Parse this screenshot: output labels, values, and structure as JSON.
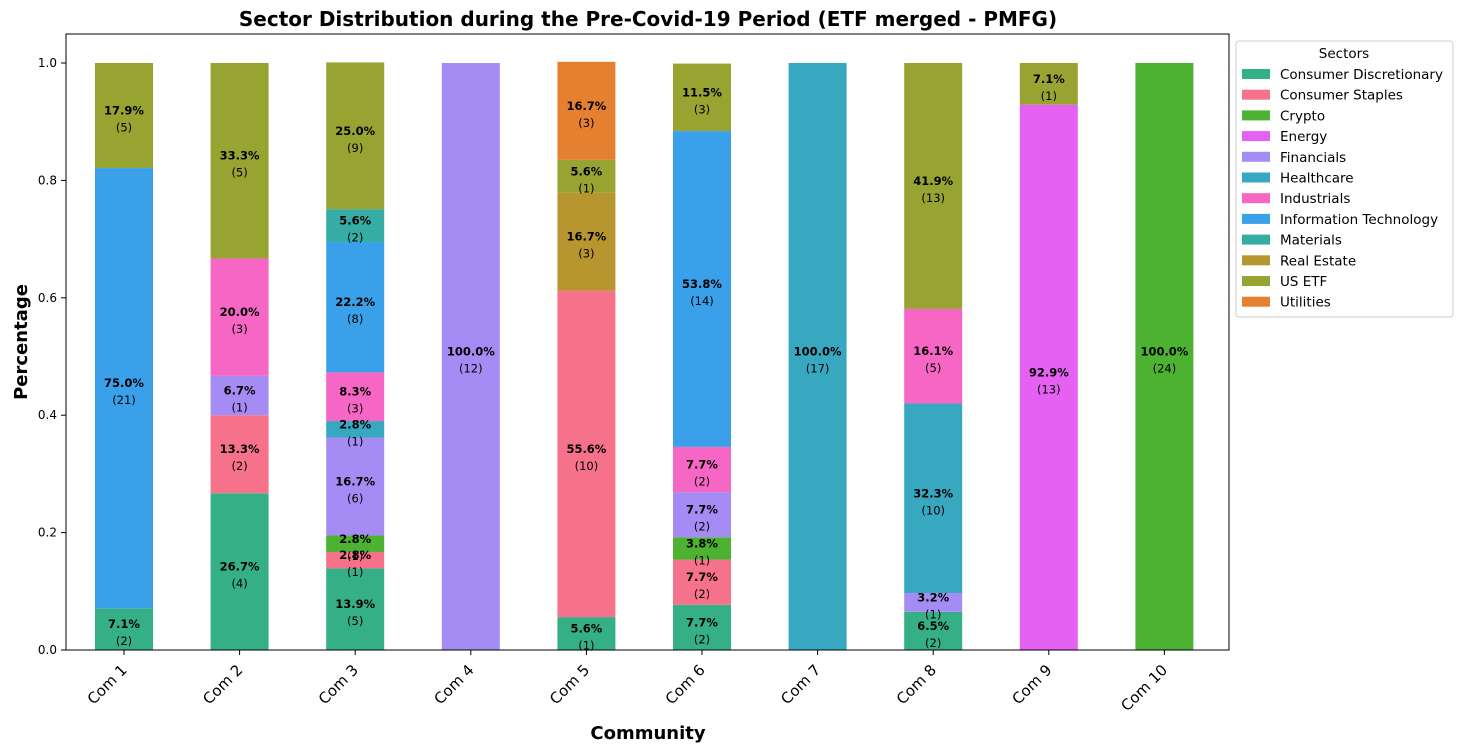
{
  "chart_data": {
    "type": "bar",
    "stacked": true,
    "title": "Sector Distribution during the Pre-Covid-19 Period (ETF merged - PMFG)",
    "xlabel": "Community",
    "ylabel": "Percentage",
    "ylim": [
      0,
      1.05
    ],
    "yticks": [
      "0.0",
      "0.2",
      "0.4",
      "0.6",
      "0.8",
      "1.0"
    ],
    "grid": false,
    "legend_title": "Sectors",
    "legend_position": "outside-top-right",
    "categories": [
      "Com 1",
      "Com 2",
      "Com 3",
      "Com 4",
      "Com 5",
      "Com 6",
      "Com 7",
      "Com 8",
      "Com 9",
      "Com 10"
    ],
    "series": [
      {
        "name": "Consumer Discretionary",
        "color": "#35af86",
        "values": [
          0.071,
          0.267,
          0.139,
          0,
          0.056,
          0.077,
          0,
          0.065,
          0,
          0
        ],
        "pct_labels": [
          "7.1%",
          "26.7%",
          "13.9%",
          "",
          "5.6%",
          "7.7%",
          "",
          "6.5%",
          "",
          ""
        ],
        "count_labels": [
          "(2)",
          "(4)",
          "(5)",
          "",
          "(1)",
          "(2)",
          "",
          "(2)",
          "",
          ""
        ]
      },
      {
        "name": "Consumer Staples",
        "color": "#f5728a",
        "values": [
          0,
          0.133,
          0.028,
          0,
          0.556,
          0.077,
          0,
          0,
          0,
          0
        ],
        "pct_labels": [
          "",
          "13.3%",
          "2.8%",
          "",
          "55.6%",
          "7.7%",
          "",
          "",
          "",
          ""
        ],
        "count_labels": [
          "",
          "(2)",
          "(1)",
          "",
          "(10)",
          "(2)",
          "",
          "",
          "",
          ""
        ]
      },
      {
        "name": "Crypto",
        "color": "#4db132",
        "values": [
          0,
          0,
          0.028,
          0,
          0,
          0.038,
          0,
          0,
          0,
          1.0
        ],
        "pct_labels": [
          "",
          "",
          "2.8%",
          "",
          "",
          "3.8%",
          "",
          "",
          "",
          "100.0%"
        ],
        "count_labels": [
          "",
          "",
          "(1)",
          "",
          "",
          "(1)",
          "",
          "",
          "",
          "(24)"
        ]
      },
      {
        "name": "Energy",
        "color": "#e461f2",
        "values": [
          0,
          0,
          0,
          0,
          0,
          0,
          0,
          0,
          0.929,
          0
        ],
        "pct_labels": [
          "",
          "",
          "",
          "",
          "",
          "",
          "",
          "",
          "92.9%",
          ""
        ],
        "count_labels": [
          "",
          "",
          "",
          "",
          "",
          "",
          "",
          "",
          "(13)",
          ""
        ]
      },
      {
        "name": "Financials",
        "color": "#a48cf4",
        "values": [
          0,
          0.067,
          0.167,
          1.0,
          0,
          0.077,
          0,
          0.032,
          0,
          0
        ],
        "pct_labels": [
          "",
          "6.7%",
          "16.7%",
          "100.0%",
          "",
          "7.7%",
          "",
          "3.2%",
          "",
          ""
        ],
        "count_labels": [
          "",
          "(1)",
          "(6)",
          "(12)",
          "",
          "(2)",
          "",
          "(1)",
          "",
          ""
        ]
      },
      {
        "name": "Healthcare",
        "color": "#38a8c0",
        "values": [
          0,
          0,
          0.028,
          0,
          0,
          0,
          1.0,
          0.323,
          0,
          0
        ],
        "pct_labels": [
          "",
          "",
          "2.8%",
          "",
          "",
          "",
          "100.0%",
          "32.3%",
          "",
          ""
        ],
        "count_labels": [
          "",
          "",
          "(1)",
          "",
          "",
          "",
          "(17)",
          "(10)",
          "",
          ""
        ]
      },
      {
        "name": "Industrials",
        "color": "#f667c5",
        "values": [
          0,
          0.2,
          0.083,
          0,
          0,
          0.077,
          0,
          0.161,
          0,
          0
        ],
        "pct_labels": [
          "",
          "20.0%",
          "8.3%",
          "",
          "",
          "7.7%",
          "",
          "16.1%",
          "",
          ""
        ],
        "count_labels": [
          "",
          "(3)",
          "(3)",
          "",
          "",
          "(2)",
          "",
          "(5)",
          "",
          ""
        ]
      },
      {
        "name": "Information Technology",
        "color": "#3aa0e9",
        "values": [
          0.75,
          0,
          0.222,
          0,
          0,
          0.538,
          0,
          0,
          0,
          0
        ],
        "pct_labels": [
          "75.0%",
          "",
          "22.2%",
          "",
          "",
          "53.8%",
          "",
          "",
          "",
          ""
        ],
        "count_labels": [
          "(21)",
          "",
          "(8)",
          "",
          "",
          "(14)",
          "",
          "",
          "",
          ""
        ]
      },
      {
        "name": "Materials",
        "color": "#36ada4",
        "values": [
          0,
          0,
          0.056,
          0,
          0,
          0,
          0,
          0,
          0,
          0
        ],
        "pct_labels": [
          "",
          "",
          "5.6%",
          "",
          "",
          "",
          "",
          "",
          "",
          ""
        ],
        "count_labels": [
          "",
          "",
          "(2)",
          "",
          "",
          "",
          "",
          "",
          "",
          ""
        ]
      },
      {
        "name": "Real Estate",
        "color": "#b7962f",
        "values": [
          0,
          0,
          0,
          0,
          0.167,
          0,
          0,
          0,
          0,
          0
        ],
        "pct_labels": [
          "",
          "",
          "",
          "",
          "16.7%",
          "",
          "",
          "",
          "",
          ""
        ],
        "count_labels": [
          "",
          "",
          "",
          "",
          "(3)",
          "",
          "",
          "",
          "",
          ""
        ]
      },
      {
        "name": "US ETF",
        "color": "#97a431",
        "values": [
          0.179,
          0.333,
          0.25,
          0,
          0.056,
          0.115,
          0,
          0.419,
          0.071,
          0
        ],
        "pct_labels": [
          "17.9%",
          "33.3%",
          "25.0%",
          "",
          "5.6%",
          "11.5%",
          "",
          "41.9%",
          "7.1%",
          ""
        ],
        "count_labels": [
          "(5)",
          "(5)",
          "(9)",
          "",
          "(1)",
          "(3)",
          "",
          "(13)",
          "(1)",
          ""
        ]
      },
      {
        "name": "Utilities",
        "color": "#e58030",
        "values": [
          0,
          0,
          0,
          0,
          0.167,
          0,
          0,
          0,
          0,
          0
        ],
        "pct_labels": [
          "",
          "",
          "",
          "",
          "16.7%",
          "",
          "",
          "",
          "",
          ""
        ],
        "count_labels": [
          "",
          "",
          "",
          "",
          "(3)",
          "",
          "",
          "",
          "",
          ""
        ]
      }
    ]
  }
}
